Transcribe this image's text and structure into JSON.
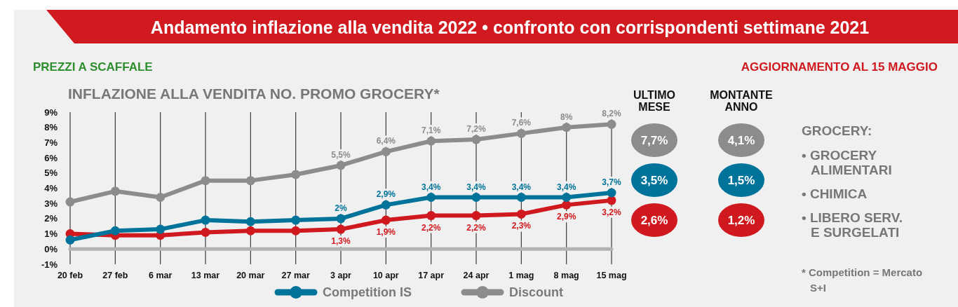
{
  "chart_data": [
    {
      "type": "line",
      "title": "Andamento inflazione alla vendita 2022 • confronto con corrispondenti settimane 2021",
      "subtitle": "INFLAZIONE ALLA VENDITA NO. PROMO GROCERY*",
      "annotations": [
        "PREZZI A SCAFFALE",
        "AGGIORNAMENTO AL 15 MAGGIO"
      ],
      "categories": [
        "20 feb",
        "27 feb",
        "6 mar",
        "13 mar",
        "20 mar",
        "27 mar",
        "3 apr",
        "10 apr",
        "17 apr",
        "24 apr",
        "1 mag",
        "8 mag",
        "15 mag"
      ],
      "series": [
        {
          "color": "#d0191e",
          "values": [
            1.0,
            0.9,
            0.9,
            1.1,
            1.2,
            1.2,
            1.3,
            1.9,
            2.2,
            2.2,
            2.3,
            2.9,
            3.2
          ],
          "value_labels": [
            null,
            null,
            null,
            null,
            null,
            null,
            "1,3%",
            "1,9%",
            "2,2%",
            "2,2%",
            "2,3%",
            "2,9%",
            "3,2%"
          ]
        },
        {
          "name": "Competition IS",
          "color": "#00739a",
          "values": [
            0.6,
            1.2,
            1.3,
            1.9,
            1.8,
            1.9,
            2,
            2.9,
            3.4,
            3.4,
            3.4,
            3.4,
            3.7
          ],
          "value_labels": [
            null,
            null,
            null,
            null,
            null,
            null,
            "2%",
            "2,9%",
            "3,4%",
            "3,4%",
            "3,4%",
            "3,4%",
            "3,7%"
          ]
        },
        {
          "name": "Discount",
          "color": "#8c8c8c",
          "values": [
            3.1,
            3.8,
            3.4,
            4.5,
            4.5,
            4.9,
            5.5,
            6.4,
            7.1,
            7.2,
            7.6,
            8,
            8.2
          ],
          "value_labels": [
            null,
            null,
            null,
            null,
            null,
            null,
            "5,5%",
            "6,4%",
            "7,1%",
            "7,2%",
            "7,6%",
            "8%",
            "8,2%"
          ]
        }
      ],
      "ylim": [
        -1,
        9
      ],
      "yticks": [
        {
          "value": -1,
          "label": "-1%"
        },
        {
          "value": 0,
          "label": "0%"
        },
        {
          "value": 1,
          "label": "1%"
        },
        {
          "value": 2,
          "label": "2%"
        },
        {
          "value": 3,
          "label": "3%"
        },
        {
          "value": 4,
          "label": "4%"
        },
        {
          "value": 5,
          "label": "5%"
        },
        {
          "value": 6,
          "label": "6%"
        },
        {
          "value": 7,
          "label": "7%"
        },
        {
          "value": 8,
          "label": "8%"
        },
        {
          "value": 9,
          "label": "9%"
        }
      ],
      "grid": "x",
      "legend": "bottom",
      "marker": "circle"
    },
    {
      "type": "other",
      "categories": [
        "ULTIMO\nMESE",
        "MONTANTE\nANNO"
      ],
      "series": [
        {
          "color": "#8c8c8c",
          "values": [
            7.7,
            4.1
          ],
          "value_labels": [
            "7,7%",
            "4,1%"
          ]
        },
        {
          "color": "#00739a",
          "values": [
            3.5,
            1.5
          ],
          "value_labels": [
            "3,5%",
            "1,5%"
          ]
        },
        {
          "color": "#d0191e",
          "values": [
            2.6,
            1.2
          ],
          "value_labels": [
            "2,6%",
            "1,2%"
          ]
        }
      ]
    },
    {
      "type": "other",
      "title": "GROCERY:",
      "annotations": [
        "• GROCERY\nALIMENTARI",
        "• CHIMICA",
        "• LIBERO SERV.\nE SURGELATI",
        "* Competition = Mercato\nS+I"
      ]
    }
  ]
}
